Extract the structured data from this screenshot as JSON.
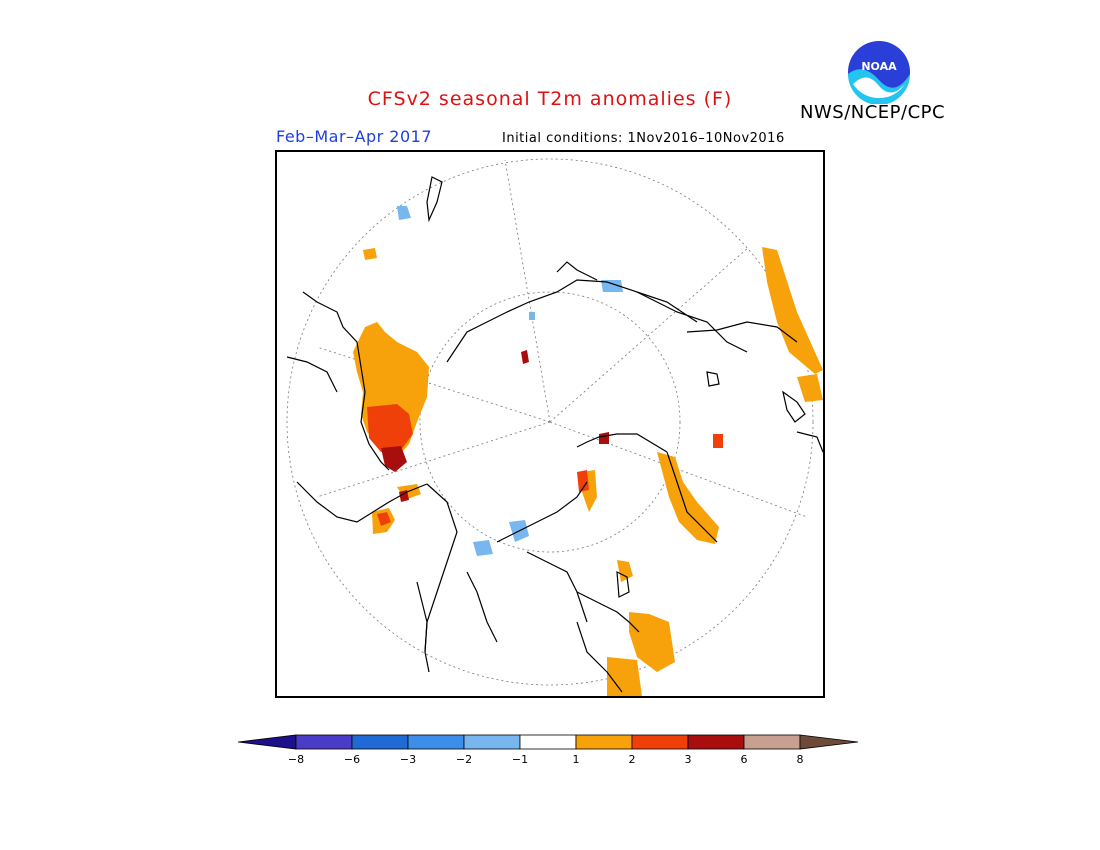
{
  "title": "CFSv2 seasonal T2m anomalies (F)",
  "period": "Feb–Mar–Apr 2017",
  "initial_conditions": "Initial conditions: 1Nov2016–10Nov2016",
  "organization": "NWS/NCEP/CPC",
  "logo_text": "NOAA",
  "colorbar": {
    "tick_labels": [
      "−8",
      "−6",
      "−3",
      "−2",
      "−1",
      "1",
      "2",
      "3",
      "6",
      "8"
    ],
    "colors": [
      "#1e0f8a",
      "#4a3cc6",
      "#1f6ad4",
      "#3d8ee8",
      "#78b6f0",
      "#ffffff",
      "#f7a20a",
      "#f0400a",
      "#a80e0e",
      "#c8a090",
      "#6e4a3a"
    ]
  },
  "map": {
    "projection": "north polar stereographic",
    "anomaly_colors": {
      "plus_1_2": "#f7a20a",
      "plus_2_3": "#f0400a",
      "plus_3_6": "#a80e0e",
      "minus_1_2": "#78b6f0"
    }
  }
}
